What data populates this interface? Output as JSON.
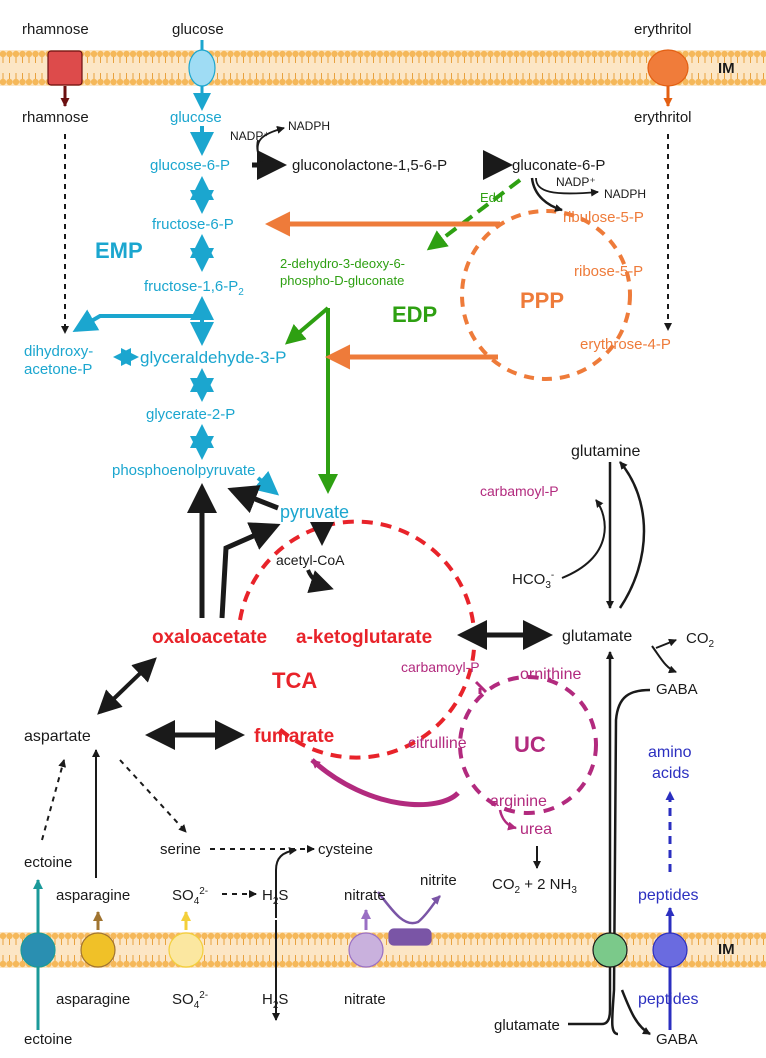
{
  "colors": {
    "black": "#1a1a1a",
    "emp_cyan": "#1ba6cf",
    "edp_green": "#2ea012",
    "ppp_orange": "#ee7b3a",
    "tca_red": "#e8232a",
    "uc_magenta": "#b22a7e",
    "blue": "#2b2fc0",
    "membrane": "#f5b85a",
    "membrane_line": "#e8a240"
  },
  "membrane": {
    "label_top": "IM",
    "label_bottom": "IM"
  },
  "transporters": [
    {
      "name": "rhamnose-transporter",
      "shape": "square",
      "color": "#dd4b4b",
      "arrow": "#6b0f10"
    },
    {
      "name": "glucose-transporter",
      "shape": "oval",
      "color": "#9fdcf4",
      "arrow": "#1ba6cf"
    },
    {
      "name": "erythritol-transporter",
      "shape": "oval",
      "color": "#f07c3a",
      "arrow": "#e35f12"
    },
    {
      "name": "ectoine-transporter",
      "shape": "circle",
      "color": "#2a8fb1",
      "arrow": "#1b9a9a"
    },
    {
      "name": "asparagine-transporter",
      "shape": "circle",
      "color": "#f0c128",
      "arrow": "#a07430"
    },
    {
      "name": "sulfate-transporter",
      "shape": "circle",
      "color": "#fbe7a0",
      "arrow": "#f3cf3a"
    },
    {
      "name": "nitrate-transporter",
      "shape": "circle",
      "color": "#c9b1dd",
      "arrow": "#9a6fc4"
    },
    {
      "name": "nitrite-transporter",
      "shape": "capsule",
      "color": "#7a55a6",
      "arrow": "#7a55a6"
    },
    {
      "name": "glutamate-gaba-transporter",
      "shape": "circle",
      "color": "#7bc98a",
      "arrow": "#1a1a1a"
    },
    {
      "name": "peptides-transporter",
      "shape": "circle",
      "color": "#6a6be0",
      "arrow": "#2b2fc0"
    }
  ],
  "labels": {
    "rhamnose_out": "rhamnose",
    "glucose_out": "glucose",
    "erythritol_out": "erythritol",
    "rhamnose_in": "rhamnose",
    "glucose_in": "glucose",
    "erythritol_in": "erythritol",
    "nadp1": "NADP⁺",
    "nadph1": "NADPH",
    "glucose6p": "glucose-6-P",
    "gluconolactone": "gluconolactone-1,5-6-P",
    "gluconate6p": "gluconate-6-P",
    "nadp2": "NADP⁺",
    "nadph2": "NADPH",
    "edd": "Edd",
    "fructose6p": "fructose-6-P",
    "ribulose5p": "ribulose-5-P",
    "emp": "EMP",
    "kdpg_line1": "2-dehydro-3-deoxy-6-",
    "kdpg_line2": "phospho-D-gluconate",
    "ribose5p": "ribose-5-P",
    "fructose16p2": "fructose-1,6-P",
    "fructose16p2_sub": "2",
    "ppp": "PPP",
    "edp": "EDP",
    "erythrose4p": "erythrose-4-P",
    "dhap_line1": "dihydroxy-",
    "dhap_line2": "acetone-P",
    "g3p": "glyceraldehyde-3-P",
    "glycerate2p": "glycerate-2-P",
    "pep": "phosphoenolpyruvate",
    "glutamine": "glutamine",
    "pyruvate": "pyruvate",
    "carbamoylp_top": "carbamoyl-P",
    "acetylcoa": "acetyl-CoA",
    "hco3": "HCO",
    "hco3_sub": "3",
    "hco3_sup": "-",
    "oxaloacetate": "oxaloacetate",
    "akg": "a-ketoglutarate",
    "glutamate": "glutamate",
    "co2": "CO",
    "co2_sub": "2",
    "tca": "TCA",
    "carbamoylp_uc": "carbamoyl-P",
    "ornithine": "ornithine",
    "gaba_in": "GABA",
    "aspartate": "aspartate",
    "fumarate": "fumarate",
    "citrulline": "citrulline",
    "uc": "UC",
    "amino_line1": "amino",
    "amino_line2": "acids",
    "arginine": "arginine",
    "urea": "urea",
    "serine": "serine",
    "cysteine": "cysteine",
    "ectoine_in": "ectoine",
    "co2_nh3_a": "CO",
    "co2_nh3_sub1": "2",
    "co2_nh3_b": " + 2 NH",
    "co2_nh3_sub2": "3",
    "asparagine_in": "asparagine",
    "so4_in": "SO",
    "so4_in_sub": "4",
    "so4_in_sup": "2-",
    "h2s_in": "H",
    "h2s_in_sub": "2",
    "h2s_in_b": "S",
    "nitrate_in": "nitrate",
    "nitrite": "nitrite",
    "peptides_in": "peptides",
    "asparagine_out": "asparagine",
    "so4_out": "SO",
    "so4_out_sub": "4",
    "so4_out_sup": "2-",
    "h2s_out": "H",
    "h2s_out_sub": "2",
    "h2s_out_b": "S",
    "nitrate_out": "nitrate",
    "glutamate_out": "glutamate",
    "peptides_out": "peptides",
    "ectoine_out": "ectoine",
    "gaba_out": "GABA"
  }
}
